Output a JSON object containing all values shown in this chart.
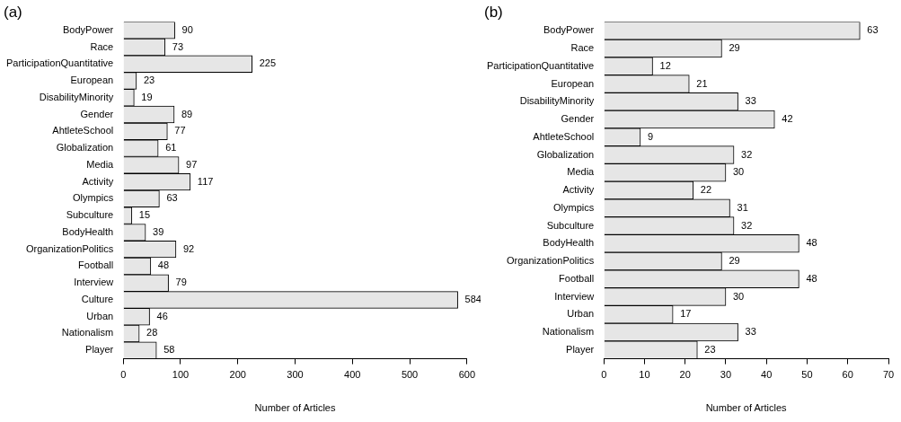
{
  "chart_data": [
    {
      "type": "bar",
      "orientation": "horizontal",
      "title": "(a)",
      "xlabel": "Number of Articles",
      "color": "#e6e6e6",
      "data_labels": true,
      "xlim": [
        0,
        600
      ],
      "xticks": [
        0,
        100,
        200,
        300,
        400,
        500,
        600
      ],
      "categories": [
        "BodyPower",
        "Race",
        "ParticipationQuantitative",
        "European",
        "DisabilityMinority",
        "Gender",
        "AhtleteSchool",
        "Globalization",
        "Media",
        "Activity",
        "Olympics",
        "Subculture",
        "BodyHealth",
        "OrganizationPolitics",
        "Football",
        "Interview",
        "Culture",
        "Urban",
        "Nationalism",
        "Player"
      ],
      "values": [
        90,
        73,
        225,
        23,
        19,
        89,
        77,
        61,
        97,
        117,
        63,
        15,
        39,
        92,
        48,
        79,
        584,
        46,
        28,
        58
      ]
    },
    {
      "type": "bar",
      "orientation": "horizontal",
      "title": "(b)",
      "xlabel": "Number of Articles",
      "color": "#e6e6e6",
      "data_labels": true,
      "xlim": [
        0,
        70
      ],
      "xticks": [
        0,
        10,
        20,
        30,
        40,
        50,
        60,
        70
      ],
      "categories": [
        "BodyPower",
        "Race",
        "ParticipationQuantitative",
        "European",
        "DisabilityMinority",
        "Gender",
        "AhtleteSchool",
        "Globalization",
        "Media",
        "Activity",
        "Olympics",
        "Subculture",
        "BodyHealth",
        "OrganizationPolitics",
        "Football",
        "Interview",
        "Urban",
        "Nationalism",
        "Player"
      ],
      "values": [
        63,
        29,
        12,
        21,
        33,
        42,
        9,
        32,
        30,
        22,
        31,
        32,
        48,
        29,
        48,
        30,
        17,
        33,
        23
      ]
    }
  ]
}
